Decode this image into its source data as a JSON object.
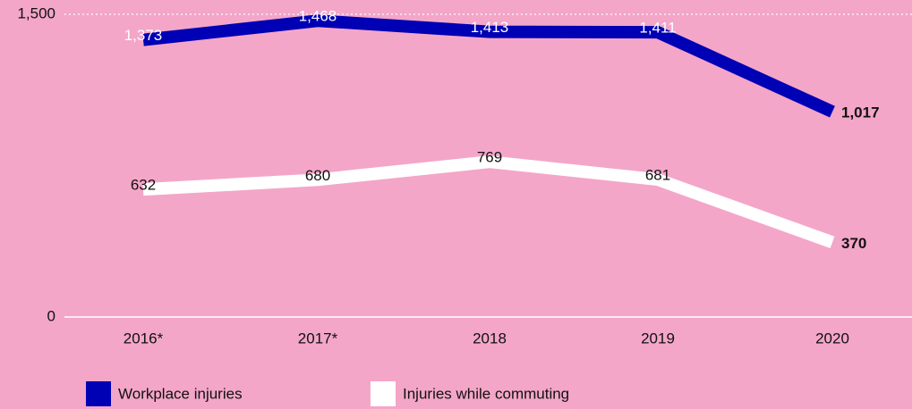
{
  "chart_data": {
    "type": "line",
    "categories": [
      "2016*",
      "2017*",
      "2018",
      "2019",
      "2020"
    ],
    "series": [
      {
        "name": "Workplace injuries",
        "color": "#0000b4",
        "values": [
          1373,
          1468,
          1413,
          1411,
          1017
        ],
        "value_labels": [
          "1,373",
          "1,468",
          "1,413",
          "1,411",
          "1,017"
        ]
      },
      {
        "name": "Injuries while commuting",
        "color": "#ffffff",
        "values": [
          632,
          680,
          769,
          681,
          370
        ]
      }
    ],
    "ylim": [
      0,
      1500
    ],
    "yticks": [
      0,
      {
        "value": 1500,
        "label": "1,500"
      }
    ],
    "grid": true
  }
}
